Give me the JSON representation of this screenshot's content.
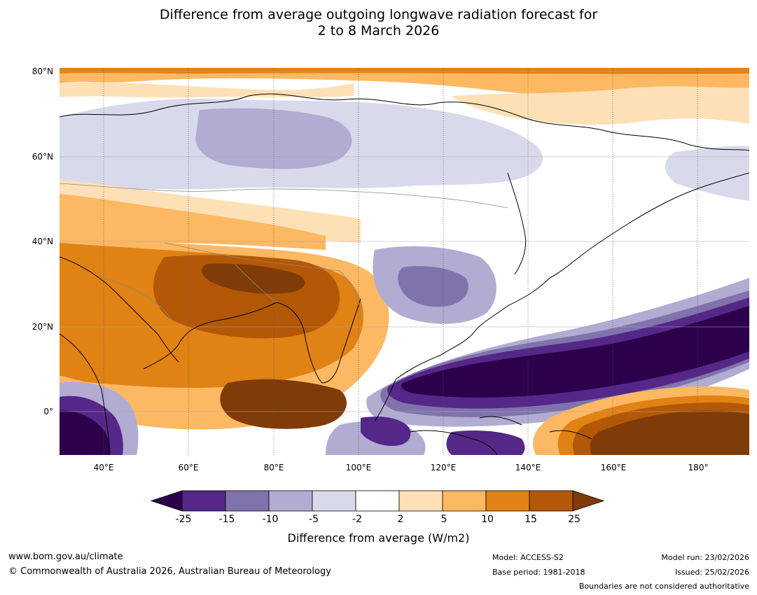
{
  "title": {
    "line1": "Difference from average outgoing longwave radiation forecast for",
    "line2": "2 to 8 March 2026"
  },
  "map": {
    "lat_labels": [
      "80°N",
      "60°N",
      "40°N",
      "20°N",
      "0°"
    ],
    "lon_labels": [
      "40°E",
      "60°E",
      "80°E",
      "100°E",
      "120°E",
      "140°E",
      "160°E",
      "180°"
    ]
  },
  "legend": {
    "ticks": [
      "-25",
      "-15",
      "-10",
      "-5",
      "-2",
      "2",
      "5",
      "10",
      "15",
      "25"
    ],
    "title": "Difference from average (W/m2)",
    "colors": [
      "#2d004b",
      "#542788",
      "#8073ac",
      "#b2abd2",
      "#d8daeb",
      "#ffffff",
      "#fee0b6",
      "#fdb863",
      "#e08214",
      "#b35806",
      "#7f3b08"
    ]
  },
  "footer": {
    "website": "www.bom.gov.au/climate",
    "copyright": "© Commonwealth of Australia 2026, Australian Bureau of Meteorology",
    "model": "Model: ACCESS-S2",
    "base_period": "Base period: 1981-2018",
    "model_run": "Model run: 23/02/2026",
    "issued": "Issued: 25/02/2026",
    "disclaimer": "Boundaries are not considered authoritative"
  }
}
